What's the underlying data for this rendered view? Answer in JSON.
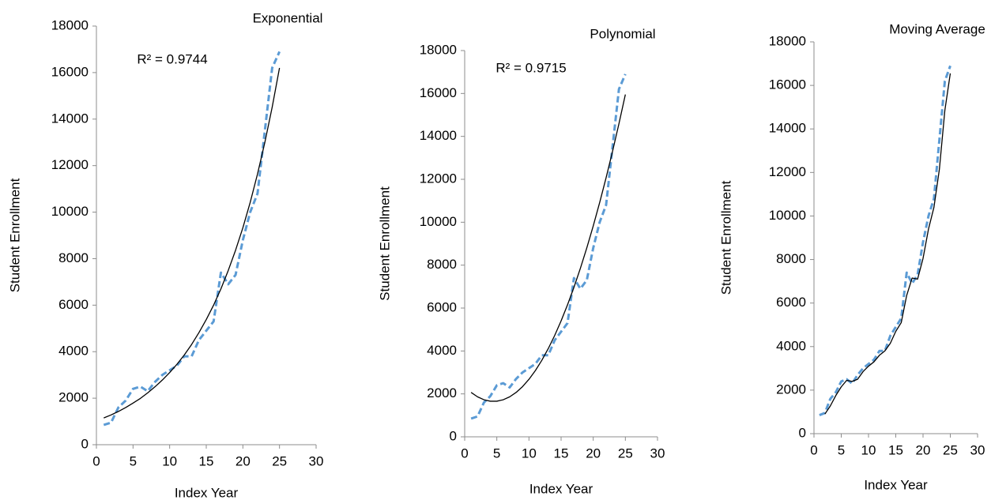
{
  "chart_data": [
    {
      "type": "line",
      "title": "Exponential",
      "annotation": "R² = 0.9744",
      "x_label": "Index Year",
      "y_label": "Student Enrollment",
      "x": [
        1,
        2,
        3,
        4,
        5,
        6,
        7,
        8,
        9,
        10,
        11,
        12,
        13,
        14,
        15,
        16,
        17,
        18,
        19,
        20,
        21,
        22,
        23,
        24,
        25
      ],
      "series": [
        {
          "color": "#5b9bd5",
          "dashed": true,
          "values": [
            850,
            950,
            1600,
            1900,
            2400,
            2500,
            2300,
            2700,
            3000,
            3200,
            3400,
            3800,
            3800,
            4500,
            4900,
            5300,
            7400,
            6900,
            7300,
            8800,
            10000,
            10800,
            13500,
            16200,
            16900
          ]
        },
        {
          "color": "#000000",
          "dashed": false,
          "values": [
            1150,
            1280,
            1430,
            1600,
            1790,
            1990,
            2230,
            2490,
            2780,
            3100,
            3460,
            3860,
            4310,
            4820,
            5380,
            6000,
            6700,
            7490,
            8360,
            9330,
            10420,
            11640,
            13000,
            14510,
            16200
          ]
        }
      ],
      "xlim": [
        0,
        30
      ],
      "ylim": [
        0,
        18000
      ],
      "xticks": [
        0,
        5,
        10,
        15,
        20,
        25,
        30
      ],
      "yticks": [
        0,
        2000,
        4000,
        6000,
        8000,
        10000,
        12000,
        14000,
        16000,
        18000
      ]
    },
    {
      "type": "line",
      "title": "Polynomial",
      "annotation": "R² = 0.9715",
      "x_label": "Index Year",
      "y_label": "Student Enrollment",
      "x": [
        1,
        2,
        3,
        4,
        5,
        6,
        7,
        8,
        9,
        10,
        11,
        12,
        13,
        14,
        15,
        16,
        17,
        18,
        19,
        20,
        21,
        22,
        23,
        24,
        25
      ],
      "series": [
        {
          "color": "#5b9bd5",
          "dashed": true,
          "values": [
            850,
            950,
            1600,
            1900,
            2400,
            2500,
            2300,
            2700,
            3000,
            3200,
            3400,
            3800,
            3800,
            4500,
            4900,
            5300,
            7400,
            6900,
            7300,
            8800,
            10000,
            10800,
            13500,
            16200,
            16900
          ]
        },
        {
          "color": "#000000",
          "dashed": false,
          "values": [
            2067,
            1863,
            1727,
            1659,
            1659,
            1727,
            1863,
            2067,
            2339,
            2679,
            3088,
            3564,
            4109,
            4721,
            5402,
            6151,
            6967,
            7852,
            8805,
            9826,
            10915,
            12072,
            13297,
            14591,
            15952
          ]
        }
      ],
      "xlim": [
        0,
        30
      ],
      "ylim": [
        0,
        18000
      ],
      "xticks": [
        0,
        5,
        10,
        15,
        20,
        25,
        30
      ],
      "yticks": [
        0,
        2000,
        4000,
        6000,
        8000,
        10000,
        12000,
        14000,
        16000,
        18000
      ]
    },
    {
      "type": "line",
      "title": "Moving Average",
      "x_label": "Index Year",
      "y_label": "Student Enrollment",
      "x": [
        1,
        2,
        3,
        4,
        5,
        6,
        7,
        8,
        9,
        10,
        11,
        12,
        13,
        14,
        15,
        16,
        17,
        18,
        19,
        20,
        21,
        22,
        23,
        24,
        25
      ],
      "series": [
        {
          "color": "#5b9bd5",
          "dashed": true,
          "values": [
            850,
            950,
            1600,
            1900,
            2400,
            2500,
            2300,
            2700,
            3000,
            3200,
            3400,
            3800,
            3800,
            4500,
            4900,
            5300,
            7400,
            6900,
            7300,
            8800,
            10000,
            10800,
            13500,
            16200,
            16900
          ]
        },
        {
          "color": "#000000",
          "dashed": false,
          "values": [
            null,
            900,
            1275,
            1750,
            2150,
            2450,
            2400,
            2500,
            2850,
            3100,
            3300,
            3600,
            3800,
            4150,
            4700,
            5100,
            6350,
            7150,
            7100,
            8050,
            9400,
            10400,
            12150,
            14850,
            16550
          ]
        }
      ],
      "xlim": [
        0,
        30
      ],
      "ylim": [
        0,
        18000
      ],
      "xticks": [
        0,
        5,
        10,
        15,
        20,
        25,
        30
      ],
      "yticks": [
        0,
        2000,
        4000,
        6000,
        8000,
        10000,
        12000,
        14000,
        16000,
        18000
      ]
    }
  ]
}
